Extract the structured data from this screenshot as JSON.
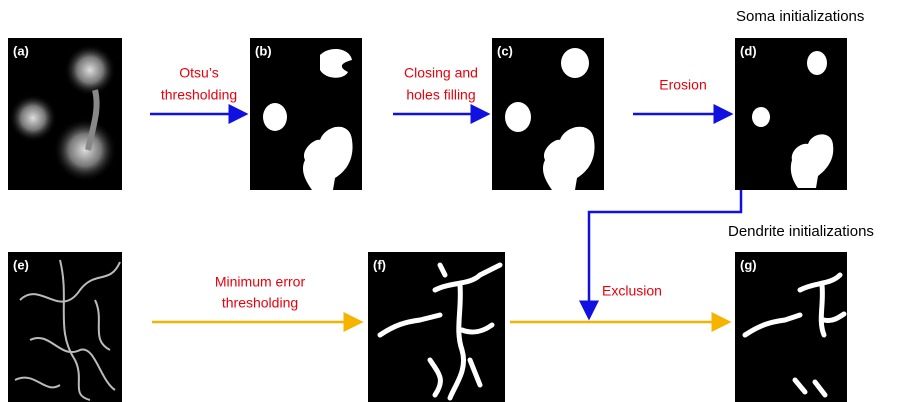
{
  "captions": {
    "soma": "Soma initializations",
    "dendrite": "Dendrite initializations"
  },
  "panels": {
    "a": "(a)",
    "b": "(b)",
    "c": "(c)",
    "d": "(d)",
    "e": "(e)",
    "f": "(f)",
    "g": "(g)"
  },
  "steps": {
    "otsu": [
      "Otsu’s",
      "thresholding"
    ],
    "closing": [
      "Closing and",
      "holes filling"
    ],
    "erosion": "Erosion",
    "minimum_error": [
      "Minimum error",
      "thresholding"
    ],
    "exclusion": "Exclusion"
  }
}
